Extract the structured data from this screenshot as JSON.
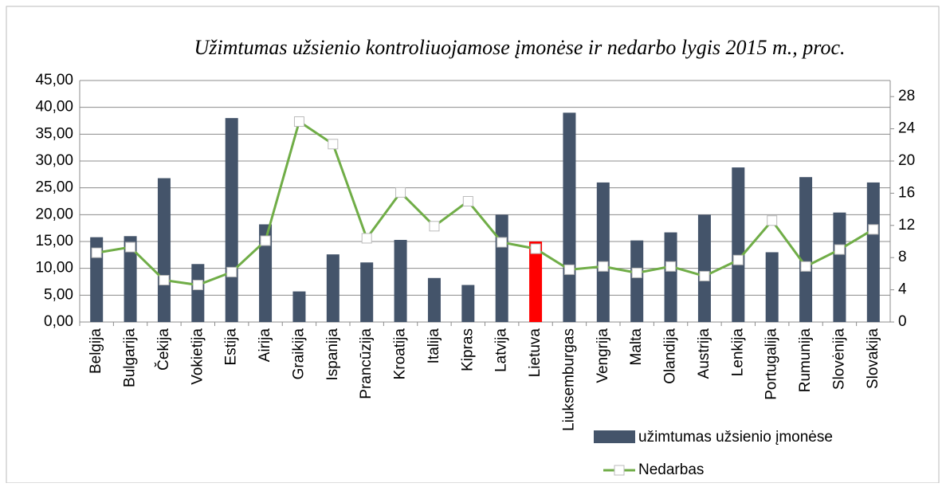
{
  "chart_data": {
    "type": "bar",
    "title": "Užimtumas užsienio kontroliuojamose įmonėse ir nedarbo lygis 2015 m., proc.",
    "categories": [
      "Belgija",
      "Bulgarija",
      "Čekija",
      "Vokietija",
      "Estija",
      "Airija",
      "Graikija",
      "Ispanija",
      "Prancūzija",
      "Kroatija",
      "Italija",
      "Kipras",
      "Latvija",
      "Lietuva",
      "Liuksemburgas",
      "Vengrija",
      "Malta",
      "Olandija",
      "Austrija",
      "Lenkija",
      "Portugalija",
      "Rumunija",
      "Slovėnija",
      "Slovakija"
    ],
    "series": [
      {
        "name": "užimtumas užsienio įmonėse",
        "type": "bar",
        "color": "#44546a",
        "colors": [
          "#44546a",
          "#44546a",
          "#44546a",
          "#44546a",
          "#44546a",
          "#44546a",
          "#44546a",
          "#44546a",
          "#44546a",
          "#44546a",
          "#44546a",
          "#44546a",
          "#44546a",
          "#ff0000",
          "#44546a",
          "#44546a",
          "#44546a",
          "#44546a",
          "#44546a",
          "#44546a",
          "#44546a",
          "#44546a",
          "#44546a",
          "#44546a"
        ],
        "values": [
          15.8,
          16.0,
          26.8,
          10.8,
          38.0,
          18.2,
          5.7,
          12.6,
          11.1,
          15.3,
          8.2,
          6.9,
          20.0,
          15.0,
          39.0,
          26.0,
          15.2,
          16.7,
          20.0,
          28.8,
          13.0,
          27.0,
          20.4,
          26.0
        ]
      },
      {
        "name": "Nedarbas",
        "type": "line",
        "axis": "y2",
        "color": "#70ad47",
        "values": [
          8.6,
          9.3,
          5.2,
          4.6,
          6.2,
          10.1,
          24.9,
          22.1,
          10.4,
          16.1,
          11.9,
          15.0,
          9.9,
          9.1,
          6.5,
          6.9,
          6.1,
          6.9,
          5.7,
          7.7,
          12.6,
          6.9,
          9.0,
          11.5
        ]
      }
    ],
    "ylim": [
      0,
      45
    ],
    "yticks": [
      {
        "value": 0,
        "label": "0,00"
      },
      {
        "value": 5,
        "label": "5,00"
      },
      {
        "value": 10,
        "label": "10,00"
      },
      {
        "value": 15,
        "label": "15,00"
      },
      {
        "value": 20,
        "label": "20,00"
      },
      {
        "value": 25,
        "label": "25,00"
      },
      {
        "value": 30,
        "label": "30,00"
      },
      {
        "value": 35,
        "label": "35,00"
      },
      {
        "value": 40,
        "label": "40,00"
      },
      {
        "value": 45,
        "label": "45,00"
      }
    ],
    "y2lim": [
      0,
      30
    ],
    "y2ticks": [
      0,
      4,
      8,
      12,
      16,
      20,
      24,
      28
    ],
    "grid": true
  }
}
